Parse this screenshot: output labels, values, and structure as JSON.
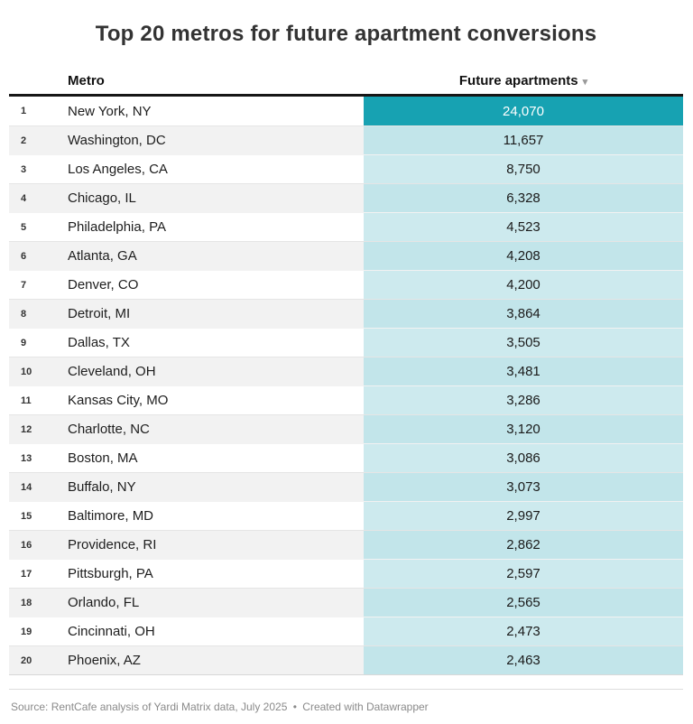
{
  "title": "Top 20 metros for future apartment conversions",
  "table": {
    "headers": {
      "metro": "Metro",
      "value": "Future apartments"
    },
    "sort_icon": "▾",
    "rows": [
      {
        "rank": "1",
        "metro": "New York, NY",
        "value": "24,070"
      },
      {
        "rank": "2",
        "metro": "Washington, DC",
        "value": "11,657"
      },
      {
        "rank": "3",
        "metro": "Los Angeles, CA",
        "value": "8,750"
      },
      {
        "rank": "4",
        "metro": "Chicago, IL",
        "value": "6,328"
      },
      {
        "rank": "5",
        "metro": "Philadelphia, PA",
        "value": "4,523"
      },
      {
        "rank": "6",
        "metro": "Atlanta, GA",
        "value": "4,208"
      },
      {
        "rank": "7",
        "metro": "Denver, CO",
        "value": "4,200"
      },
      {
        "rank": "8",
        "metro": "Detroit, MI",
        "value": "3,864"
      },
      {
        "rank": "9",
        "metro": "Dallas, TX",
        "value": "3,505"
      },
      {
        "rank": "10",
        "metro": "Cleveland, OH",
        "value": "3,481"
      },
      {
        "rank": "11",
        "metro": "Kansas City, MO",
        "value": "3,286"
      },
      {
        "rank": "12",
        "metro": "Charlotte, NC",
        "value": "3,120"
      },
      {
        "rank": "13",
        "metro": "Boston, MA",
        "value": "3,086"
      },
      {
        "rank": "14",
        "metro": "Buffalo, NY",
        "value": "3,073"
      },
      {
        "rank": "15",
        "metro": "Baltimore, MD",
        "value": "2,997"
      },
      {
        "rank": "16",
        "metro": "Providence, RI",
        "value": "2,862"
      },
      {
        "rank": "17",
        "metro": "Pittsburgh, PA",
        "value": "2,597"
      },
      {
        "rank": "18",
        "metro": "Orlando, FL",
        "value": "2,565"
      },
      {
        "rank": "19",
        "metro": "Cincinnati, OH",
        "value": "2,473"
      },
      {
        "rank": "20",
        "metro": "Phoenix, AZ",
        "value": "2,463"
      }
    ]
  },
  "footer": {
    "source": "Source: RentCafe analysis of Yardi Matrix data, July 2025",
    "separator": "•",
    "attribution": "Created with Datawrapper"
  },
  "colors": {
    "highlight_cell": "#17a2b2",
    "highlight_text": "#ffffff",
    "value_cell_light": "#cdeaee",
    "value_cell_light_alt": "#c2e5ea",
    "row_alt_background": "#f2f2f2",
    "header_rule": "#161616"
  },
  "chart_data": {
    "type": "table",
    "title": "Top 20 metros for future apartment conversions",
    "columns": [
      "Metro",
      "Future apartments"
    ],
    "categories": [
      "New York, NY",
      "Washington, DC",
      "Los Angeles, CA",
      "Chicago, IL",
      "Philadelphia, PA",
      "Atlanta, GA",
      "Denver, CO",
      "Detroit, MI",
      "Dallas, TX",
      "Cleveland, OH",
      "Kansas City, MO",
      "Charlotte, NC",
      "Boston, MA",
      "Buffalo, NY",
      "Baltimore, MD",
      "Providence, RI",
      "Pittsburgh, PA",
      "Orlando, FL",
      "Cincinnati, OH",
      "Phoenix, AZ"
    ],
    "values": [
      24070,
      11657,
      8750,
      6328,
      4523,
      4208,
      4200,
      3864,
      3505,
      3481,
      3286,
      3120,
      3086,
      3073,
      2997,
      2862,
      2597,
      2565,
      2473,
      2463
    ],
    "sort": "Future apartments, descending",
    "highlighted_row": "New York, NY",
    "legend_position": "none",
    "grid": false
  }
}
